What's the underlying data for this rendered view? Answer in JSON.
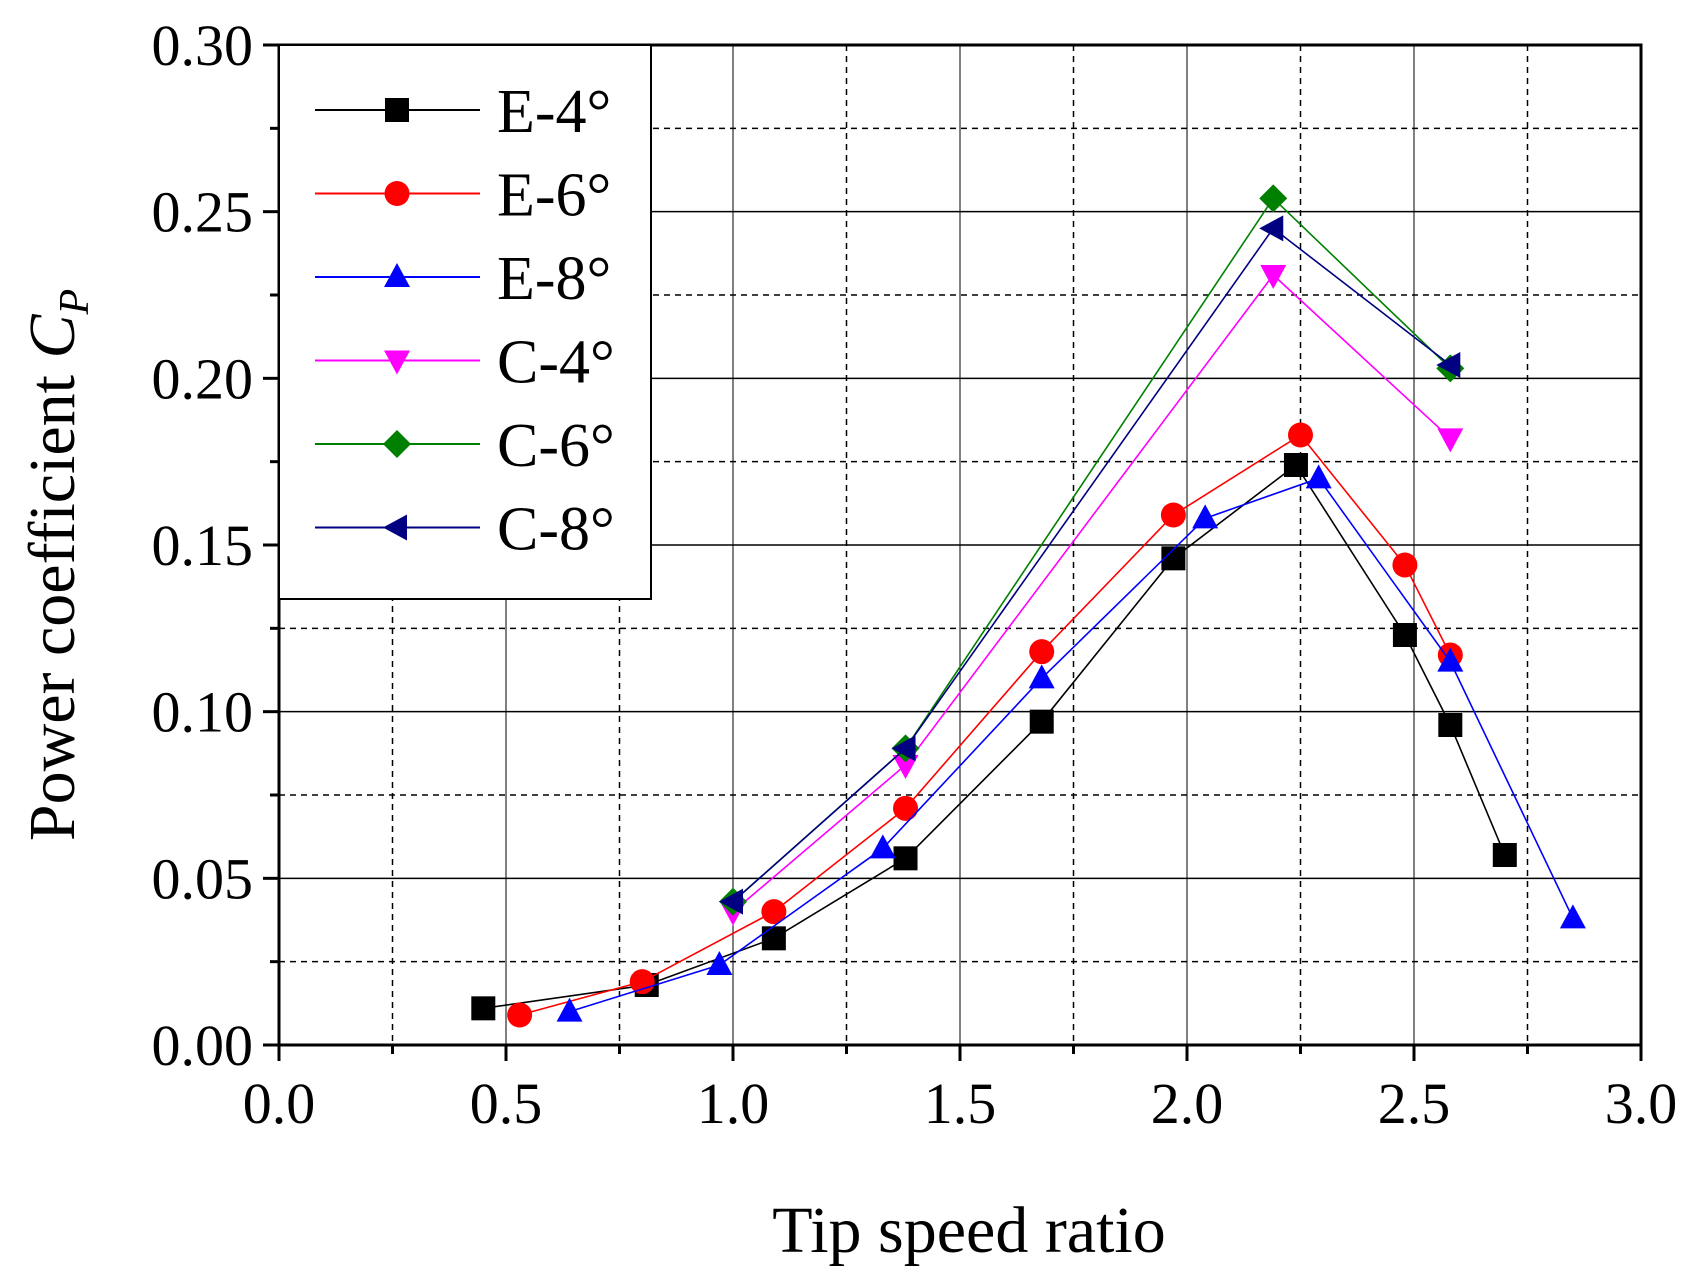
{
  "chart_data": {
    "type": "line",
    "title": "",
    "xlabel": "Tip speed ratio",
    "ylabel": "Power coefficient ",
    "ylabel_symbol": "C",
    "ylabel_subscript": "P",
    "xlim": [
      0.0,
      3.0
    ],
    "ylim": [
      0.0,
      0.3
    ],
    "x_ticks": [
      "0.0",
      "0.5",
      "1.0",
      "1.5",
      "2.0",
      "2.5",
      "3.0"
    ],
    "y_ticks": [
      "0.00",
      "0.05",
      "0.10",
      "0.15",
      "0.20",
      "0.25",
      "0.30"
    ],
    "grid": "major solid, minor dashed",
    "legend_position": "top-left",
    "series": [
      {
        "name": "E-4°",
        "color": "#000000",
        "marker": "square",
        "x": [
          0.45,
          0.81,
          1.09,
          1.38,
          1.68,
          1.97,
          2.24,
          2.48,
          2.58,
          2.7
        ],
        "y": [
          0.011,
          0.018,
          0.032,
          0.056,
          0.097,
          0.146,
          0.174,
          0.123,
          0.096,
          0.057
        ]
      },
      {
        "name": "E-6°",
        "color": "#ff0000",
        "marker": "circle",
        "x": [
          0.53,
          0.8,
          1.09,
          1.38,
          1.68,
          1.97,
          2.25,
          2.48,
          2.58
        ],
        "y": [
          0.009,
          0.019,
          0.04,
          0.071,
          0.118,
          0.159,
          0.183,
          0.144,
          0.117
        ]
      },
      {
        "name": "E-8°",
        "color": "#0000ff",
        "marker": "triangle-up",
        "x": [
          0.64,
          0.97,
          1.33,
          1.68,
          2.04,
          2.29,
          2.58,
          2.85
        ],
        "y": [
          0.01,
          0.024,
          0.059,
          0.11,
          0.158,
          0.17,
          0.115,
          0.038
        ]
      },
      {
        "name": "C-4°",
        "color": "#ff00ff",
        "marker": "triangle-down",
        "x": [
          1.0,
          1.38,
          2.19,
          2.58
        ],
        "y": [
          0.04,
          0.084,
          0.231,
          0.182
        ]
      },
      {
        "name": "C-6°",
        "color": "#008000",
        "marker": "diamond",
        "x": [
          1.0,
          1.38,
          2.19,
          2.58
        ],
        "y": [
          0.043,
          0.089,
          0.254,
          0.203
        ]
      },
      {
        "name": "C-8°",
        "color": "#000080",
        "marker": "triangle-left",
        "x": [
          1.0,
          1.38,
          2.19,
          2.58
        ],
        "y": [
          0.043,
          0.089,
          0.245,
          0.204
        ]
      }
    ]
  }
}
